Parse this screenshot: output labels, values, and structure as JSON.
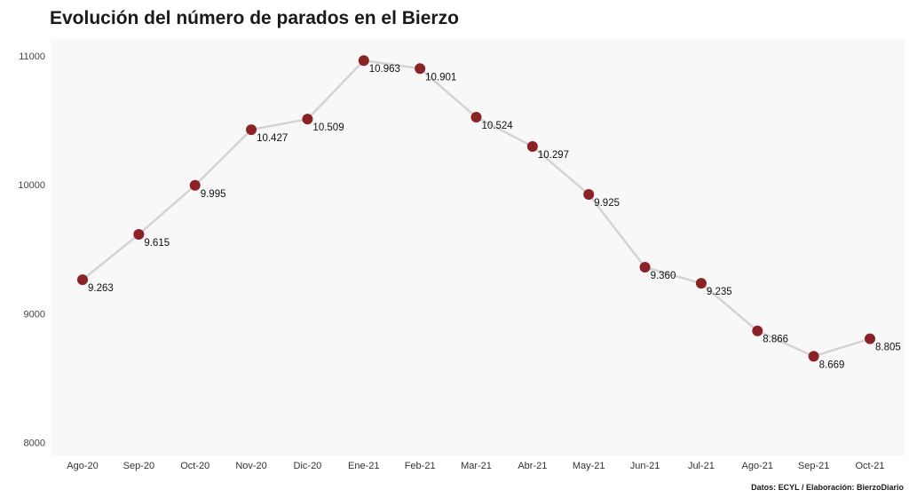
{
  "chart_data": {
    "type": "line",
    "title": "Evolución del número de parados en el Bierzo",
    "source": "Datos: ECYL / Elaboración: BierzoDiario",
    "categories": [
      "Ago-20",
      "Sep-20",
      "Oct-20",
      "Nov-20",
      "Dic-20",
      "Ene-21",
      "Feb-21",
      "Mar-21",
      "Abr-21",
      "May-21",
      "Jun-21",
      "Jul-21",
      "Ago-21",
      "Sep-21",
      "Oct-21"
    ],
    "values": [
      9263,
      9615,
      9995,
      10427,
      10509,
      10963,
      10901,
      10524,
      10297,
      9925,
      9360,
      9235,
      8866,
      8669,
      8805
    ],
    "data_labels": [
      "9.263",
      "9.615",
      "9.995",
      "10.427",
      "10.509",
      "10.963",
      "10.901",
      "10.524",
      "10.297",
      "9.925",
      "9.360",
      "9.235",
      "8.866",
      "8.669",
      "8.805"
    ],
    "yticks": [
      8000,
      9000,
      10000,
      11000
    ],
    "ylim": [
      7900,
      11130
    ],
    "grid": false,
    "line_color": "#d3d3d3",
    "marker_color": "#8b2226",
    "plot_background": "#f8f8f8"
  }
}
